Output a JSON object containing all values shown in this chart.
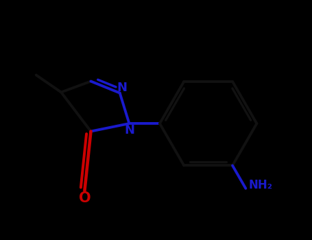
{
  "background_color": "#000000",
  "bond_color": "#111111",
  "nitrogen_color": "#1a1acd",
  "oxygen_color": "#cc0000",
  "nh2_color": "#1a1acd",
  "line_width": 2.8,
  "figsize": [
    4.55,
    3.5
  ],
  "dpi": 100,
  "xlim": [
    -2.5,
    2.8
  ],
  "ylim": [
    -1.8,
    2.0
  ]
}
